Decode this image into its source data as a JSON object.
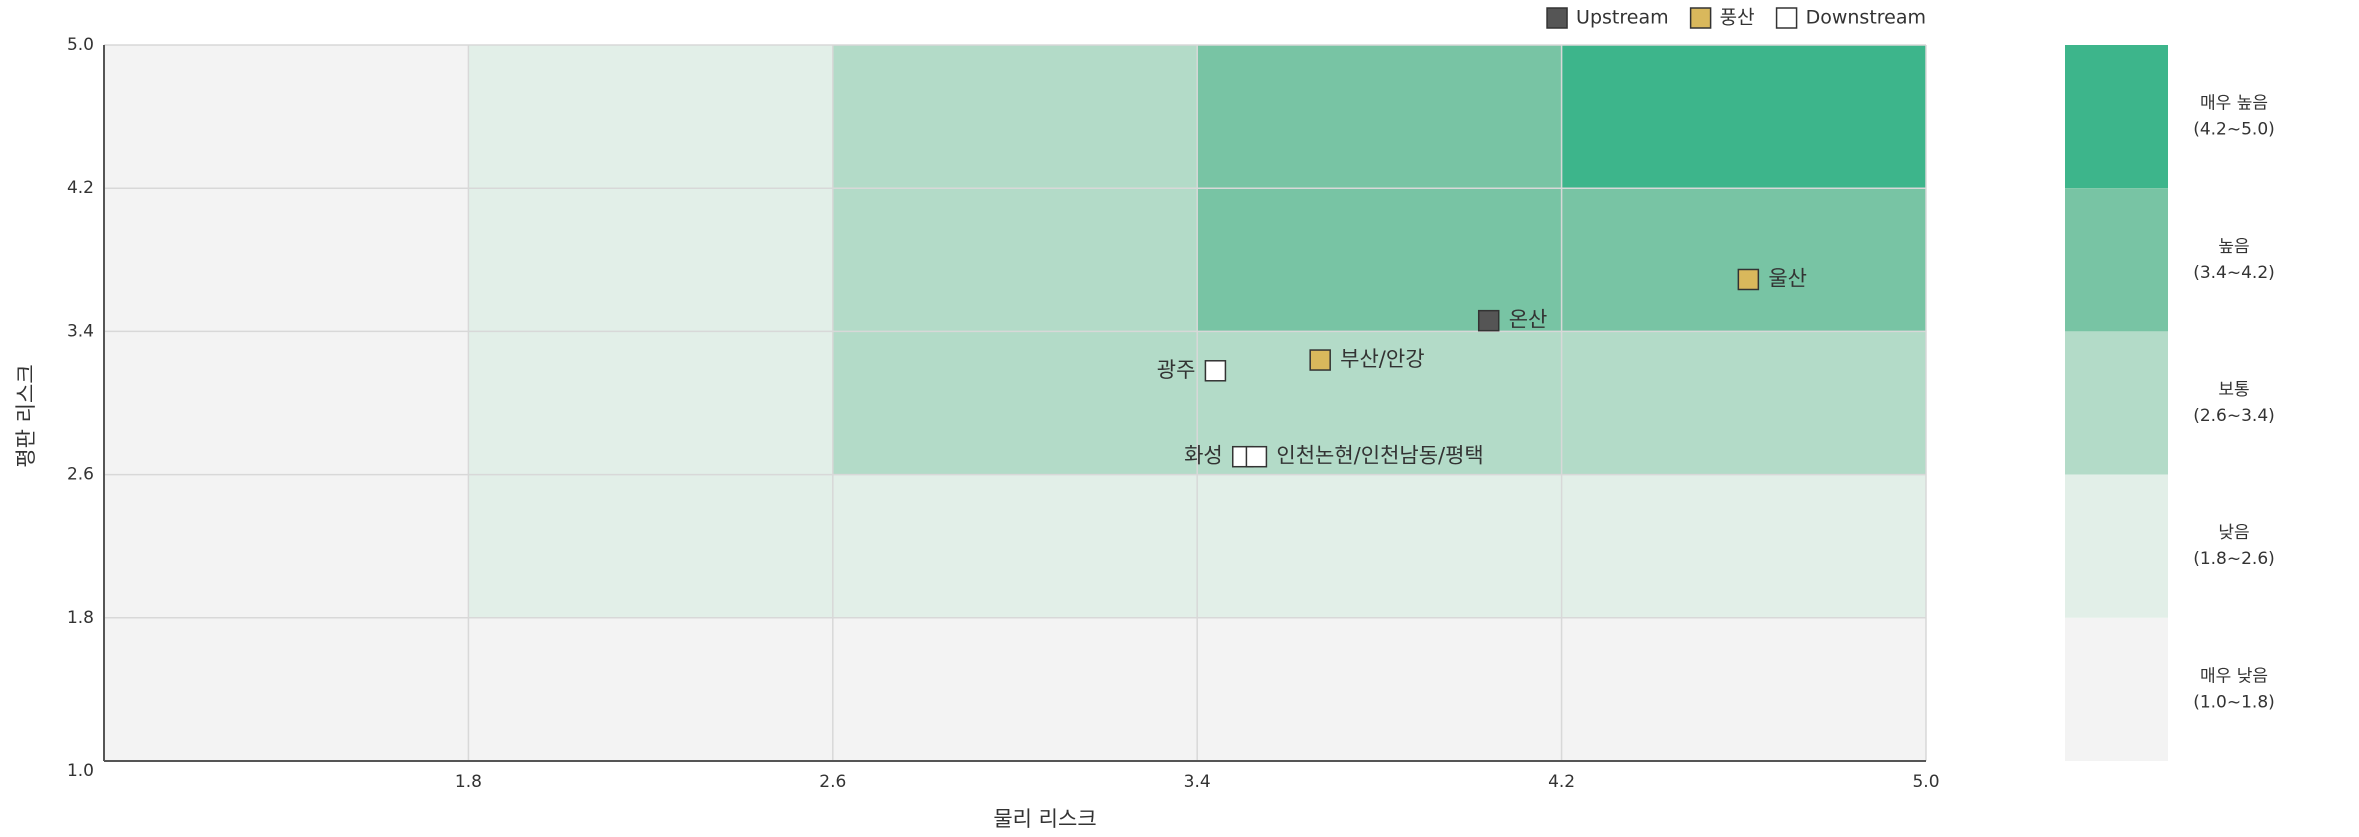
{
  "chart_data": {
    "type": "scatter",
    "x_label": "물리 리스크",
    "y_label": "평판 리스크",
    "xlim": [
      1.0,
      5.0
    ],
    "ylim": [
      1.0,
      5.0
    ],
    "xticks": [
      1.8,
      2.6,
      3.4,
      4.2,
      {
        "value": 5.0,
        "label": "5.0"
      }
    ],
    "yticks": [
      {
        "value": 1.0,
        "label": "1.0"
      },
      1.8,
      2.6,
      3.4,
      4.2,
      {
        "value": 5.0,
        "label": "5.0"
      }
    ],
    "grid": true,
    "cell_colors": [
      [
        "#f3f3f3",
        "#f3f3f3",
        "#f3f3f3",
        "#f3f3f3",
        "#f3f3f3"
      ],
      [
        "#f3f3f3",
        "#e2efe8",
        "#e2efe8",
        "#e2efe8",
        "#e2efe8"
      ],
      [
        "#f3f3f3",
        "#e2efe8",
        "#b3dbc8",
        "#b3dbc8",
        "#b3dbc8"
      ],
      [
        "#f3f3f3",
        "#e2efe8",
        "#b3dbc8",
        "#78c4a4",
        "#78c4a4"
      ],
      [
        "#f3f3f3",
        "#e2efe8",
        "#b3dbc8",
        "#78c4a4",
        "#3db58b"
      ]
    ],
    "risk_levels": [
      {
        "name": "매우 높음",
        "range": "(4.2~5.0)",
        "color": "#3db58b"
      },
      {
        "name": "높음",
        "range": "(3.4~4.2)",
        "color": "#78c4a4"
      },
      {
        "name": "보통",
        "range": "(2.6~3.4)",
        "color": "#b3dbc8"
      },
      {
        "name": "낮음",
        "range": "(1.8~2.6)",
        "color": "#e2efe8"
      },
      {
        "name": "매우 낮음",
        "range": "(1.0~1.8)",
        "color": "#f3f3f3"
      }
    ],
    "legend_position": "top-right",
    "series": [
      {
        "name": "Upstream",
        "color": "#555555",
        "points": [
          {
            "label": "온산",
            "x": 4.04,
            "y": 3.46,
            "label_position": "right"
          }
        ]
      },
      {
        "name": "풍산",
        "color": "#d9b85c",
        "points": [
          {
            "label": "울산",
            "x": 4.61,
            "y": 3.69,
            "label_position": "right"
          },
          {
            "label": "부산/안강",
            "x": 3.67,
            "y": 3.24,
            "label_position": "right"
          }
        ]
      },
      {
        "name": "Downstream",
        "color": "#ffffff",
        "points": [
          {
            "label": "광주",
            "x": 3.44,
            "y": 3.18,
            "label_position": "left"
          },
          {
            "label": "화성",
            "x": 3.5,
            "y": 2.7,
            "label_position": "left"
          },
          {
            "label": "인천논현/인천남동/평택",
            "x": 3.53,
            "y": 2.7,
            "label_position": "right"
          }
        ]
      }
    ]
  }
}
